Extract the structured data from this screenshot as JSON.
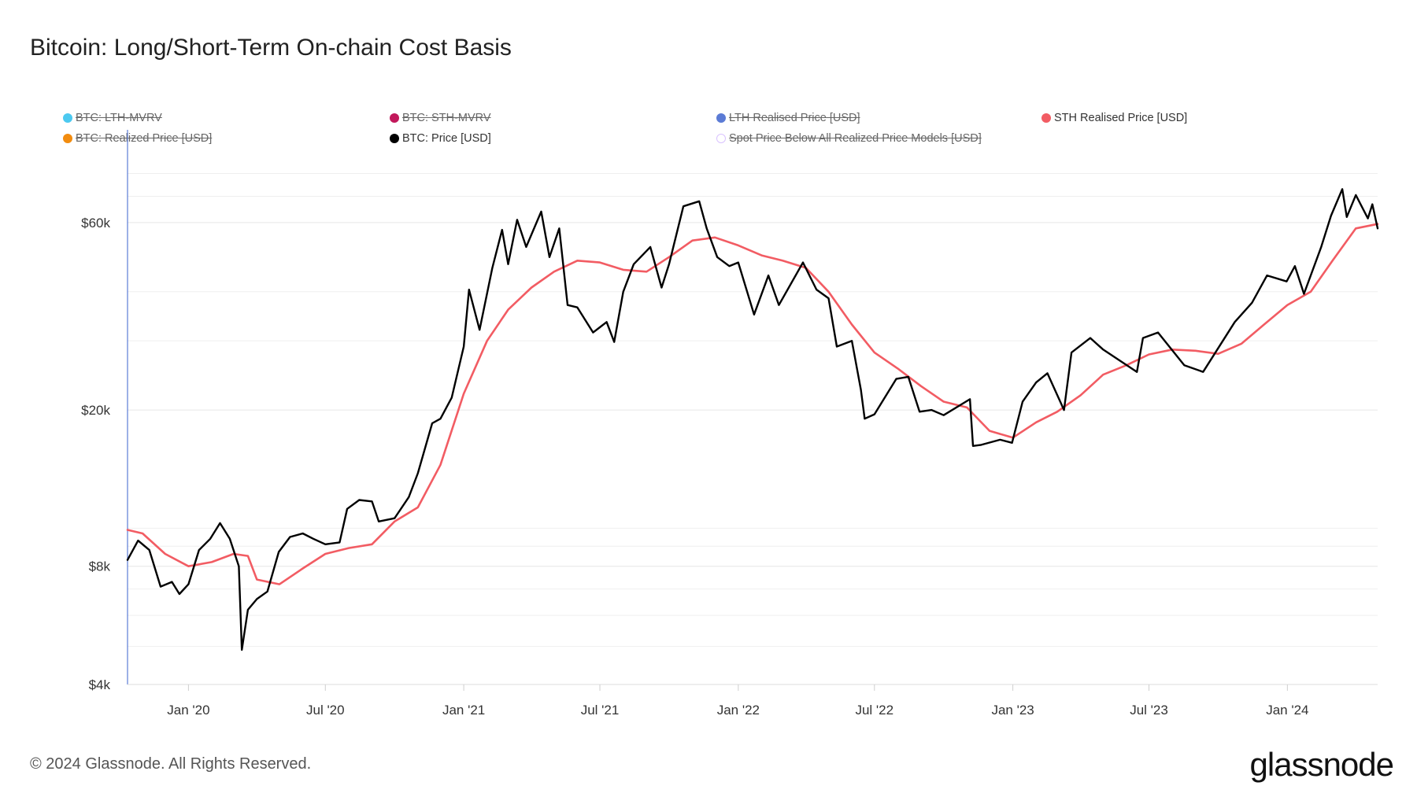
{
  "title": "Bitcoin: Long/Short-Term On-chain Cost Basis",
  "legend": [
    {
      "label": "BTC: LTH-MVRV",
      "color": "#4cc9f0",
      "enabled": false
    },
    {
      "label": "BTC: STH-MVRV",
      "color": "#c2185b",
      "enabled": false
    },
    {
      "label": "LTH Realised Price [USD]",
      "color": "#5b7bd5",
      "enabled": false
    },
    {
      "label": "STH Realised Price [USD]",
      "color": "#f25c63",
      "enabled": true
    },
    {
      "label": "BTC: Realized Price [USD]",
      "color": "#f28c0f",
      "enabled": false
    },
    {
      "label": "BTC: Price [USD]",
      "color": "#000000",
      "enabled": true
    },
    {
      "label": "Spot Price Below All Realized Price Models [USD]",
      "color": "#d9c2ff",
      "enabled": false
    }
  ],
  "footer": "© 2024 Glassnode. All Rights Reserved.",
  "logo": "glassnode",
  "chart_data": {
    "type": "line",
    "title": "Bitcoin: Long/Short-Term On-chain Cost Basis",
    "xlabel": "",
    "ylabel": "",
    "y_scale": "log",
    "ylim": [
      4000,
      90000
    ],
    "xlim": [
      "2019-10-12",
      "2024-04-30"
    ],
    "y_ticks": [
      {
        "value": 4000,
        "label": "$4k"
      },
      {
        "value": 8000,
        "label": "$8k"
      },
      {
        "value": 20000,
        "label": "$20k"
      },
      {
        "value": 60000,
        "label": "$60k"
      }
    ],
    "x_ticks": [
      {
        "value": "2020-01-01",
        "label": "Jan '20"
      },
      {
        "value": "2020-07-01",
        "label": "Jul '20"
      },
      {
        "value": "2021-01-01",
        "label": "Jan '21"
      },
      {
        "value": "2021-07-01",
        "label": "Jul '21"
      },
      {
        "value": "2022-01-01",
        "label": "Jan '22"
      },
      {
        "value": "2022-07-01",
        "label": "Jul '22"
      },
      {
        "value": "2023-01-01",
        "label": "Jan '23"
      },
      {
        "value": "2023-07-01",
        "label": "Jul '23"
      },
      {
        "value": "2024-01-01",
        "label": "Jan '24"
      }
    ],
    "grid": true,
    "legend_position": "top",
    "series": [
      {
        "name": "STH Realised Price [USD]",
        "color": "#f25c63",
        "points": [
          [
            "2019-10-12",
            9900
          ],
          [
            "2019-11-01",
            9700
          ],
          [
            "2019-12-01",
            8600
          ],
          [
            "2020-01-01",
            8000
          ],
          [
            "2020-02-01",
            8200
          ],
          [
            "2020-03-01",
            8600
          ],
          [
            "2020-03-20",
            8500
          ],
          [
            "2020-04-01",
            7400
          ],
          [
            "2020-05-01",
            7200
          ],
          [
            "2020-06-01",
            7900
          ],
          [
            "2020-07-01",
            8600
          ],
          [
            "2020-08-01",
            8900
          ],
          [
            "2020-09-01",
            9100
          ],
          [
            "2020-10-01",
            10400
          ],
          [
            "2020-11-01",
            11300
          ],
          [
            "2020-12-01",
            14500
          ],
          [
            "2021-01-01",
            22000
          ],
          [
            "2021-02-01",
            30000
          ],
          [
            "2021-03-01",
            36000
          ],
          [
            "2021-04-01",
            41000
          ],
          [
            "2021-05-01",
            45000
          ],
          [
            "2021-06-01",
            48000
          ],
          [
            "2021-07-01",
            47500
          ],
          [
            "2021-08-01",
            45500
          ],
          [
            "2021-09-01",
            45000
          ],
          [
            "2021-10-01",
            49000
          ],
          [
            "2021-11-01",
            54000
          ],
          [
            "2021-12-01",
            55000
          ],
          [
            "2022-01-01",
            52500
          ],
          [
            "2022-02-01",
            49500
          ],
          [
            "2022-03-01",
            48000
          ],
          [
            "2022-04-01",
            46000
          ],
          [
            "2022-05-01",
            40000
          ],
          [
            "2022-06-01",
            33000
          ],
          [
            "2022-07-01",
            28000
          ],
          [
            "2022-08-01",
            25500
          ],
          [
            "2022-09-01",
            23000
          ],
          [
            "2022-10-01",
            21000
          ],
          [
            "2022-11-01",
            20300
          ],
          [
            "2022-12-01",
            17700
          ],
          [
            "2023-01-01",
            17000
          ],
          [
            "2023-02-01",
            18600
          ],
          [
            "2023-03-01",
            19800
          ],
          [
            "2023-04-01",
            21800
          ],
          [
            "2023-05-01",
            24600
          ],
          [
            "2023-06-01",
            26000
          ],
          [
            "2023-07-01",
            27700
          ],
          [
            "2023-08-01",
            28500
          ],
          [
            "2023-09-01",
            28300
          ],
          [
            "2023-10-01",
            27800
          ],
          [
            "2023-11-01",
            29500
          ],
          [
            "2023-12-01",
            33000
          ],
          [
            "2024-01-01",
            37000
          ],
          [
            "2024-02-01",
            40000
          ],
          [
            "2024-03-01",
            48000
          ],
          [
            "2024-04-01",
            58000
          ],
          [
            "2024-04-30",
            59500
          ]
        ]
      },
      {
        "name": "BTC: Price [USD]",
        "color": "#000000",
        "points": [
          [
            "2019-10-12",
            8300
          ],
          [
            "2019-10-26",
            9300
          ],
          [
            "2019-11-10",
            8800
          ],
          [
            "2019-11-25",
            7100
          ],
          [
            "2019-12-10",
            7300
          ],
          [
            "2019-12-20",
            6800
          ],
          [
            "2020-01-01",
            7200
          ],
          [
            "2020-01-15",
            8800
          ],
          [
            "2020-01-30",
            9400
          ],
          [
            "2020-02-12",
            10300
          ],
          [
            "2020-02-25",
            9400
          ],
          [
            "2020-03-08",
            8000
          ],
          [
            "2020-03-12",
            4900
          ],
          [
            "2020-03-20",
            6200
          ],
          [
            "2020-04-01",
            6600
          ],
          [
            "2020-04-15",
            6900
          ],
          [
            "2020-04-30",
            8700
          ],
          [
            "2020-05-15",
            9500
          ],
          [
            "2020-06-01",
            9700
          ],
          [
            "2020-06-15",
            9400
          ],
          [
            "2020-07-01",
            9100
          ],
          [
            "2020-07-20",
            9200
          ],
          [
            "2020-07-30",
            11200
          ],
          [
            "2020-08-15",
            11800
          ],
          [
            "2020-09-01",
            11700
          ],
          [
            "2020-09-10",
            10400
          ],
          [
            "2020-10-01",
            10600
          ],
          [
            "2020-10-20",
            12000
          ],
          [
            "2020-11-01",
            13800
          ],
          [
            "2020-11-20",
            18500
          ],
          [
            "2020-12-01",
            19000
          ],
          [
            "2020-12-16",
            21500
          ],
          [
            "2021-01-01",
            29000
          ],
          [
            "2021-01-08",
            40500
          ],
          [
            "2021-01-22",
            32000
          ],
          [
            "2021-02-08",
            46000
          ],
          [
            "2021-02-21",
            57500
          ],
          [
            "2021-03-01",
            47000
          ],
          [
            "2021-03-13",
            61000
          ],
          [
            "2021-03-25",
            52000
          ],
          [
            "2021-04-14",
            64000
          ],
          [
            "2021-04-25",
            49000
          ],
          [
            "2021-05-08",
            58000
          ],
          [
            "2021-05-19",
            37000
          ],
          [
            "2021-06-01",
            36500
          ],
          [
            "2021-06-22",
            31500
          ],
          [
            "2021-07-10",
            33500
          ],
          [
            "2021-07-20",
            29800
          ],
          [
            "2021-08-01",
            40000
          ],
          [
            "2021-08-15",
            47000
          ],
          [
            "2021-09-06",
            52000
          ],
          [
            "2021-09-21",
            41000
          ],
          [
            "2021-10-01",
            47000
          ],
          [
            "2021-10-20",
            66000
          ],
          [
            "2021-11-10",
            68000
          ],
          [
            "2021-11-20",
            58000
          ],
          [
            "2021-12-04",
            49000
          ],
          [
            "2021-12-20",
            46500
          ],
          [
            "2022-01-01",
            47500
          ],
          [
            "2022-01-22",
            35000
          ],
          [
            "2022-02-10",
            44000
          ],
          [
            "2022-02-24",
            37000
          ],
          [
            "2022-03-28",
            47500
          ],
          [
            "2022-04-15",
            40500
          ],
          [
            "2022-05-01",
            38500
          ],
          [
            "2022-05-12",
            29000
          ],
          [
            "2022-06-01",
            30000
          ],
          [
            "2022-06-13",
            22500
          ],
          [
            "2022-06-18",
            19000
          ],
          [
            "2022-07-01",
            19500
          ],
          [
            "2022-07-30",
            24000
          ],
          [
            "2022-08-15",
            24300
          ],
          [
            "2022-08-30",
            19800
          ],
          [
            "2022-09-15",
            20000
          ],
          [
            "2022-10-01",
            19400
          ],
          [
            "2022-11-05",
            21300
          ],
          [
            "2022-11-09",
            16200
          ],
          [
            "2022-11-20",
            16300
          ],
          [
            "2022-12-15",
            16800
          ],
          [
            "2022-12-31",
            16500
          ],
          [
            "2023-01-14",
            21000
          ],
          [
            "2023-02-01",
            23500
          ],
          [
            "2023-02-16",
            24800
          ],
          [
            "2023-03-10",
            20000
          ],
          [
            "2023-03-20",
            28000
          ],
          [
            "2023-04-14",
            30500
          ],
          [
            "2023-05-01",
            28500
          ],
          [
            "2023-06-15",
            25000
          ],
          [
            "2023-06-23",
            30500
          ],
          [
            "2023-07-13",
            31500
          ],
          [
            "2023-08-17",
            26000
          ],
          [
            "2023-09-11",
            25000
          ],
          [
            "2023-10-23",
            33500
          ],
          [
            "2023-11-15",
            37500
          ],
          [
            "2023-12-05",
            44000
          ],
          [
            "2023-12-31",
            42500
          ],
          [
            "2024-01-11",
            46500
          ],
          [
            "2024-01-23",
            39500
          ],
          [
            "2024-02-15",
            52000
          ],
          [
            "2024-02-28",
            62500
          ],
          [
            "2024-03-14",
            73000
          ],
          [
            "2024-03-20",
            62000
          ],
          [
            "2024-04-01",
            70500
          ],
          [
            "2024-04-17",
            61500
          ],
          [
            "2024-04-23",
            66800
          ],
          [
            "2024-04-30",
            58000
          ]
        ]
      }
    ]
  }
}
